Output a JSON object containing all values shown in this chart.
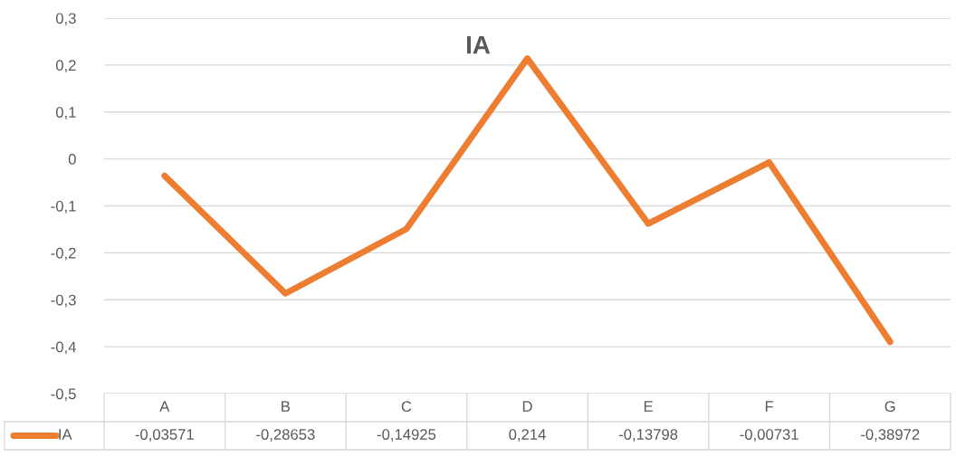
{
  "chart_data": {
    "type": "line",
    "title": "IA",
    "categories": [
      "A",
      "B",
      "C",
      "D",
      "E",
      "F",
      "G"
    ],
    "series": [
      {
        "name": "IA",
        "color": "#ed7d31",
        "values": [
          -0.03571,
          -0.28653,
          -0.14925,
          0.214,
          -0.13798,
          -0.00731,
          -0.38972
        ],
        "value_labels": [
          "-0,03571",
          "-0,28653",
          "-0,14925",
          "0,214",
          "-0,13798",
          "-0,00731",
          "-0,38972"
        ]
      }
    ],
    "ylim": [
      -0.5,
      0.3
    ],
    "yticks": [
      {
        "value": -0.5,
        "label": "-0,5"
      },
      {
        "value": -0.4,
        "label": "-0,4"
      },
      {
        "value": -0.3,
        "label": "-0,3"
      },
      {
        "value": -0.2,
        "label": "-0,2"
      },
      {
        "value": -0.1,
        "label": "-0,1"
      },
      0,
      {
        "value": 0.1,
        "label": "0,1"
      },
      {
        "value": 0.2,
        "label": "0,2"
      },
      {
        "value": 0.3,
        "label": "0,3"
      }
    ],
    "grid": "y",
    "legend": "bottom",
    "marker": "none",
    "line_style": "solid"
  }
}
